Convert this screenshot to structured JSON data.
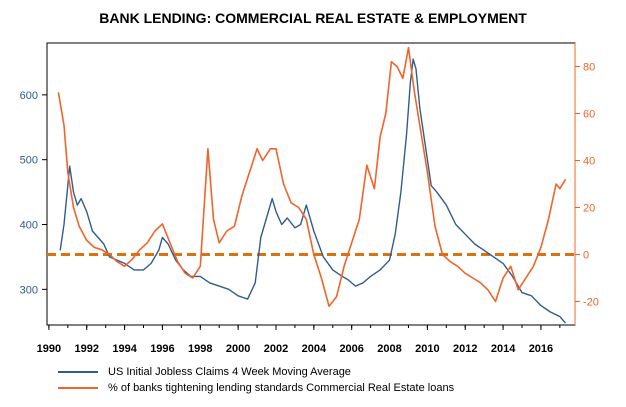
{
  "chart_data": {
    "type": "line",
    "title": "BANK LENDING: COMMERCIAL REAL ESTATE & EMPLOYMENT",
    "xlabel": "",
    "xlim": [
      1989.9,
      2017.8
    ],
    "x_ticks": [
      "1990",
      "1992",
      "1994",
      "1996",
      "1998",
      "2000",
      "2002",
      "2004",
      "2006",
      "2008",
      "2010",
      "2012",
      "2014",
      "2016"
    ],
    "left_axis": {
      "ylabel": "",
      "ylim": [
        245,
        680
      ],
      "ticks": [
        "300",
        "400",
        "500",
        "600"
      ]
    },
    "right_axis": {
      "ylabel": "",
      "ylim": [
        -30,
        90
      ],
      "ticks": [
        "-20",
        "0",
        "20",
        "40",
        "60",
        "80"
      ]
    },
    "grid": false,
    "legend_position": "bottom-left",
    "reference_line": {
      "axis": "right",
      "y": 0,
      "color": "#D9720F",
      "style": "dashed"
    },
    "series": [
      {
        "name": "US Initial Jobless Claims 4 Week Moving Average",
        "axis": "left",
        "color": "#2F5D8E",
        "x": [
          1990.6,
          1990.8,
          1991.0,
          1991.1,
          1991.3,
          1991.5,
          1991.7,
          1992.0,
          1992.3,
          1992.6,
          1992.9,
          1993.2,
          1993.6,
          1994.0,
          1994.5,
          1995.0,
          1995.4,
          1995.8,
          1996.0,
          1996.3,
          1996.7,
          1997.1,
          1997.5,
          1998.0,
          1998.5,
          1999.0,
          1999.5,
          2000.0,
          2000.5,
          2000.9,
          2001.2,
          2001.5,
          2001.8,
          2002.0,
          2002.3,
          2002.6,
          2003.0,
          2003.3,
          2003.6,
          2004.0,
          2004.5,
          2005.0,
          2005.5,
          2005.8,
          2006.2,
          2006.6,
          2007.0,
          2007.5,
          2008.0,
          2008.3,
          2008.6,
          2008.9,
          2009.1,
          2009.25,
          2009.4,
          2009.6,
          2009.9,
          2010.2,
          2010.5,
          2011.0,
          2011.5,
          2012.0,
          2012.5,
          2013.0,
          2013.5,
          2014.0,
          2014.5,
          2015.0,
          2015.5,
          2016.0,
          2016.5,
          2017.0,
          2017.3
        ],
        "values": [
          360,
          400,
          460,
          490,
          450,
          430,
          440,
          420,
          390,
          380,
          370,
          350,
          345,
          340,
          330,
          330,
          340,
          360,
          380,
          370,
          345,
          330,
          320,
          320,
          310,
          305,
          300,
          290,
          285,
          310,
          380,
          410,
          440,
          420,
          400,
          410,
          395,
          400,
          430,
          390,
          350,
          330,
          320,
          315,
          305,
          310,
          320,
          330,
          345,
          385,
          450,
          540,
          620,
          655,
          640,
          580,
          520,
          460,
          450,
          430,
          400,
          385,
          370,
          360,
          350,
          340,
          320,
          295,
          290,
          275,
          265,
          258,
          248
        ]
      },
      {
        "name": "% of banks tightening lending standards Commercial Real Estate  loans",
        "axis": "right",
        "color": "#F0642A",
        "x": [
          1990.5,
          1990.8,
          1991.0,
          1991.3,
          1991.6,
          1992.0,
          1992.4,
          1992.8,
          1993.2,
          1993.6,
          1994.0,
          1994.4,
          1994.8,
          1995.2,
          1995.6,
          1996.0,
          1996.4,
          1996.8,
          1997.2,
          1997.6,
          1998.0,
          1998.4,
          1998.7,
          1999.0,
          1999.4,
          1999.8,
          2000.2,
          2000.6,
          2001.0,
          2001.3,
          2001.7,
          2002.0,
          2002.4,
          2002.8,
          2003.2,
          2003.6,
          2004.0,
          2004.4,
          2004.8,
          2005.2,
          2005.6,
          2006.0,
          2006.4,
          2006.8,
          2007.2,
          2007.5,
          2007.8,
          2008.1,
          2008.4,
          2008.7,
          2009.0,
          2009.3,
          2009.6,
          2010.0,
          2010.4,
          2010.8,
          2011.2,
          2011.6,
          2012.0,
          2012.4,
          2012.8,
          2013.2,
          2013.6,
          2014.0,
          2014.4,
          2014.8,
          2015.2,
          2015.6,
          2016.0,
          2016.4,
          2016.8,
          2017.0,
          2017.3
        ],
        "values": [
          69,
          55,
          35,
          20,
          12,
          6,
          3,
          2,
          0,
          -3,
          -5,
          -2,
          2,
          5,
          10,
          13,
          5,
          -3,
          -8,
          -10,
          -5,
          45,
          15,
          5,
          10,
          12,
          25,
          35,
          45,
          40,
          45,
          45,
          30,
          22,
          20,
          15,
          0,
          -10,
          -22,
          -18,
          -5,
          5,
          15,
          38,
          28,
          50,
          60,
          82,
          80,
          75,
          88,
          70,
          55,
          35,
          12,
          0,
          -3,
          -5,
          -8,
          -10,
          -12,
          -15,
          -20,
          -10,
          -5,
          -15,
          -10,
          -5,
          3,
          15,
          30,
          28,
          32
        ]
      }
    ]
  }
}
